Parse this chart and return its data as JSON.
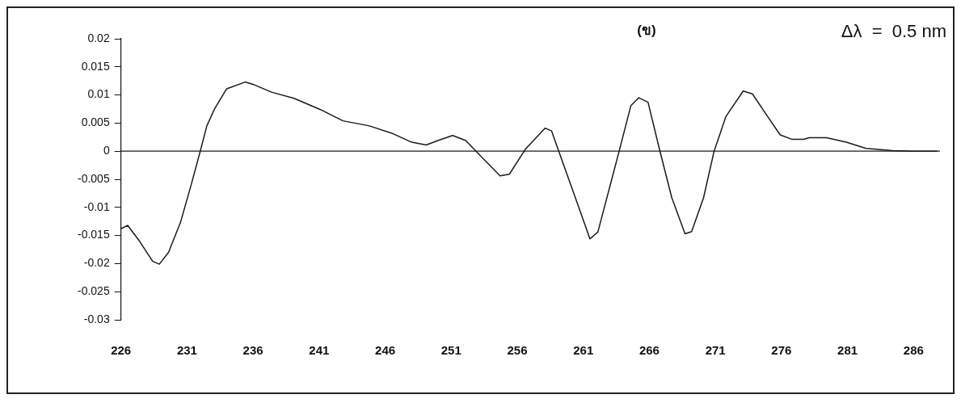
{
  "chart_data": {
    "type": "line",
    "annotations": [
      "(ข)",
      "Δλ  =  0.5 nm"
    ],
    "x": [
      226,
      226.5,
      227.4,
      228.4,
      228.9,
      229.6,
      230.5,
      231.3,
      232.0,
      232.5,
      233.1,
      234.0,
      235.4,
      236.1,
      237.4,
      239.1,
      241.1,
      242.8,
      244.8,
      246.5,
      248.0,
      249.1,
      250.0,
      251.1,
      252.1,
      253.2,
      254.7,
      255.4,
      256.6,
      258.1,
      258.6,
      259.2,
      260.4,
      261.5,
      262.1,
      263.7,
      264.6,
      265.2,
      265.9,
      266.8,
      267.7,
      268.7,
      269.2,
      270.1,
      270.9,
      271.8,
      273.1,
      273.8,
      274.8,
      275.9,
      276.8,
      277.7,
      278.1,
      279.4,
      280.9,
      282.4,
      284.4,
      285.9,
      287.8
    ],
    "series": [
      {
        "color": "#1a1a1a",
        "values": [
          -0.0138,
          -0.0132,
          -0.016,
          -0.0196,
          -0.0201,
          -0.018,
          -0.0127,
          -0.0061,
          0,
          0.0045,
          0.0076,
          0.0111,
          0.0123,
          0.0118,
          0.0105,
          0.0094,
          0.0074,
          0.0054,
          0.0045,
          0.0032,
          0.0016,
          0.0011,
          0.0019,
          0.0028,
          0.0019,
          -0.0008,
          -0.0044,
          -0.0041,
          0.0003,
          0.0041,
          0.0036,
          -0.0004,
          -0.0083,
          -0.0156,
          -0.0144,
          -0.0001,
          0.0081,
          0.0095,
          0.0087,
          0,
          -0.0083,
          -0.0147,
          -0.0143,
          -0.0083,
          0,
          0.0062,
          0.0107,
          0.0102,
          0.0067,
          0.0029,
          0.0021,
          0.0021,
          0.0024,
          0.0024,
          0.0016,
          0.0005,
          0.0001,
          0,
          0
        ]
      }
    ],
    "xlim": [
      226,
      288
    ],
    "xticks": [
      226,
      231,
      236,
      241,
      246,
      251,
      256,
      261,
      266,
      271,
      276,
      281,
      286
    ],
    "ylim": [
      -0.03,
      0.02
    ],
    "yticks": [
      -0.03,
      -0.025,
      -0.02,
      -0.015,
      -0.01,
      -0.005,
      0,
      0.005,
      0.01,
      0.015,
      0.02
    ],
    "ref_lines": [
      {
        "axis": "y",
        "value": 0,
        "color": "#1a1a1a"
      }
    ],
    "grid": false,
    "legend": false,
    "marker": "none",
    "line_style": "solid"
  }
}
